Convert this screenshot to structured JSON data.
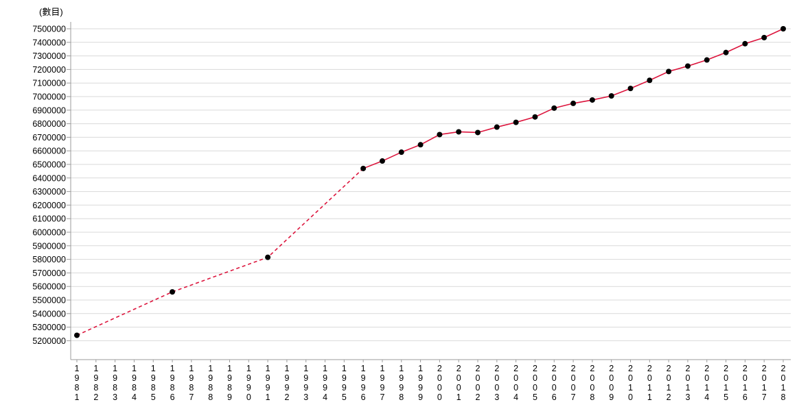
{
  "title": "(數目)",
  "chart_data": {
    "type": "line",
    "title": "(數目)",
    "xlabel": "",
    "ylabel": "(數目)",
    "grid": true,
    "legend": "none",
    "ylim": [
      5200000,
      7500000
    ],
    "y_tick_step": 100000,
    "y_ticks": [
      7500000,
      7400000,
      7300000,
      7200000,
      7100000,
      7000000,
      6900000,
      6800000,
      6700000,
      6600000,
      6500000,
      6400000,
      6300000,
      6200000,
      6100000,
      6000000,
      5900000,
      5800000,
      5700000,
      5600000,
      5500000,
      5400000,
      5300000,
      5200000
    ],
    "x_tick_labels": [
      "1981",
      "1982",
      "1983",
      "1984",
      "1985",
      "1986",
      "1987",
      "1988",
      "1989",
      "1990",
      "1991",
      "1992",
      "1993",
      "1994",
      "1995",
      "1996",
      "1997",
      "1998",
      "1999",
      "2000",
      "2001",
      "2002",
      "2003",
      "2004",
      "2005",
      "2006",
      "2007",
      "2008",
      "2009",
      "2010",
      "2011",
      "2012",
      "2013",
      "2014",
      "2015",
      "2016",
      "2017",
      "2018"
    ],
    "points": [
      {
        "x": 1981,
        "y": 5240000
      },
      {
        "x": 1986,
        "y": 5560000
      },
      {
        "x": 1991,
        "y": 5815000
      },
      {
        "x": 1996,
        "y": 6470000
      },
      {
        "x": 1997,
        "y": 6525000
      },
      {
        "x": 1998,
        "y": 6590000
      },
      {
        "x": 1999,
        "y": 6645000
      },
      {
        "x": 2000,
        "y": 6720000
      },
      {
        "x": 2001,
        "y": 6740000
      },
      {
        "x": 2002,
        "y": 6735000
      },
      {
        "x": 2003,
        "y": 6775000
      },
      {
        "x": 2004,
        "y": 6810000
      },
      {
        "x": 2005,
        "y": 6850000
      },
      {
        "x": 2006,
        "y": 6915000
      },
      {
        "x": 2007,
        "y": 6950000
      },
      {
        "x": 2008,
        "y": 6975000
      },
      {
        "x": 2009,
        "y": 7005000
      },
      {
        "x": 2010,
        "y": 7060000
      },
      {
        "x": 2011,
        "y": 7120000
      },
      {
        "x": 2012,
        "y": 7185000
      },
      {
        "x": 2013,
        "y": 7225000
      },
      {
        "x": 2014,
        "y": 7270000
      },
      {
        "x": 2015,
        "y": 7325000
      },
      {
        "x": 2016,
        "y": 7390000
      },
      {
        "x": 2017,
        "y": 7435000
      },
      {
        "x": 2018,
        "y": 7500000
      }
    ],
    "line_segments": [
      {
        "style": "dashed",
        "from": 1981,
        "to": 1996
      },
      {
        "style": "solid",
        "from": 1996,
        "to": 2018
      }
    ],
    "colors": {
      "line": "#dc143c",
      "marker": "#000000",
      "grid": "#d9d9d9",
      "axis": "#9b9b9b",
      "text": "#000000"
    }
  }
}
